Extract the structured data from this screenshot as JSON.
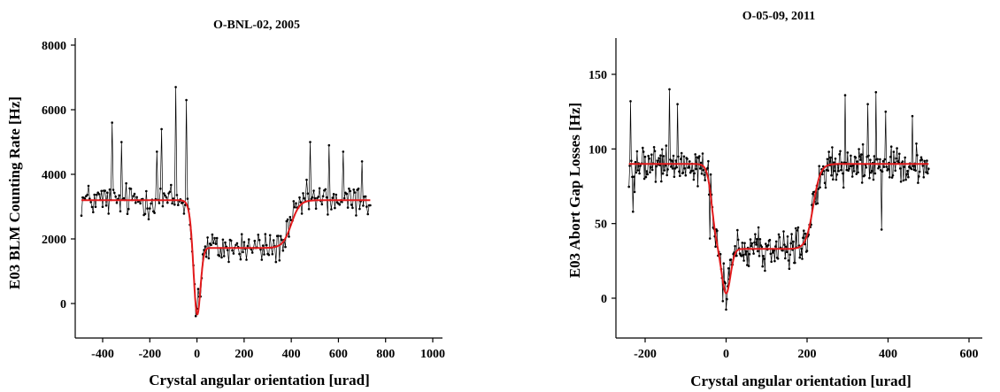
{
  "chart_data": [
    {
      "type": "line",
      "title": "O-BNL-02, 2005",
      "xlabel": "Crystal angular orientation [urad]",
      "ylabel": "E03 BLM Counting Rate [Hz]",
      "xlim": [
        -500,
        1000
      ],
      "ylim": [
        -500,
        8000
      ],
      "xticks": [
        -400,
        -200,
        0,
        200,
        400,
        600,
        800,
        1000
      ],
      "yticks": [
        0,
        2000,
        4000,
        6000,
        8000
      ],
      "grid": false,
      "series": [
        {
          "kind": "measured",
          "color": "#000000",
          "marker": "dot",
          "x_range": [
            -490,
            735
          ],
          "x_step": 5,
          "noise": 520,
          "spikes": [
            [
              -360,
              5600
            ],
            [
              -320,
              5000
            ],
            [
              -150,
              5400
            ],
            [
              -90,
              6700
            ],
            [
              -45,
              6300
            ],
            [
              -170,
              4700
            ],
            [
              480,
              5000
            ],
            [
              560,
              4900
            ],
            [
              620,
              4700
            ],
            [
              700,
              4400
            ],
            [
              5,
              450
            ],
            [
              -10,
              600
            ]
          ]
        },
        {
          "kind": "fit",
          "color": "#e31a1c",
          "baseline": 3200,
          "dip_center": 0,
          "dip_depth": 2200,
          "dip_width": 20,
          "drop_center": -25,
          "drop_width": 8,
          "plateau": 1720,
          "rise_center": 400,
          "rise_width": 18,
          "x_range": [
            -490,
            735
          ]
        }
      ]
    },
    {
      "type": "line",
      "title": "O-05-09, 2011",
      "xlabel": "Crystal angular orientation [urad]",
      "ylabel": "E03 Abort Gap Losses [Hz]",
      "xlim": [
        -290,
        620
      ],
      "ylim": [
        -25,
        175
      ],
      "xticks": [
        -200,
        0,
        200,
        400,
        600
      ],
      "yticks": [
        0,
        50,
        100,
        150
      ],
      "grid": false,
      "series": [
        {
          "kind": "measured",
          "color": "#000000",
          "marker": "dot",
          "x_range": [
            -240,
            500
          ],
          "x_step": 2,
          "noise": 13,
          "spikes": [
            [
              -235,
              132
            ],
            [
              -140,
              140
            ],
            [
              -120,
              130
            ],
            [
              295,
              136
            ],
            [
              350,
              130
            ],
            [
              370,
              138
            ],
            [
              395,
              125
            ],
            [
              460,
              122
            ],
            [
              385,
              46
            ],
            [
              -230,
              58
            ],
            [
              -40,
              40
            ],
            [
              5,
              8
            ]
          ]
        },
        {
          "kind": "fit",
          "color": "#e31a1c",
          "baseline": 90,
          "dip_center": 0,
          "dip_depth": 30,
          "dip_width": 15,
          "drop_center": -35,
          "drop_width": 6,
          "plateau": 33,
          "rise_center": 215,
          "rise_width": 9,
          "x_range": [
            -240,
            500
          ]
        }
      ]
    }
  ]
}
